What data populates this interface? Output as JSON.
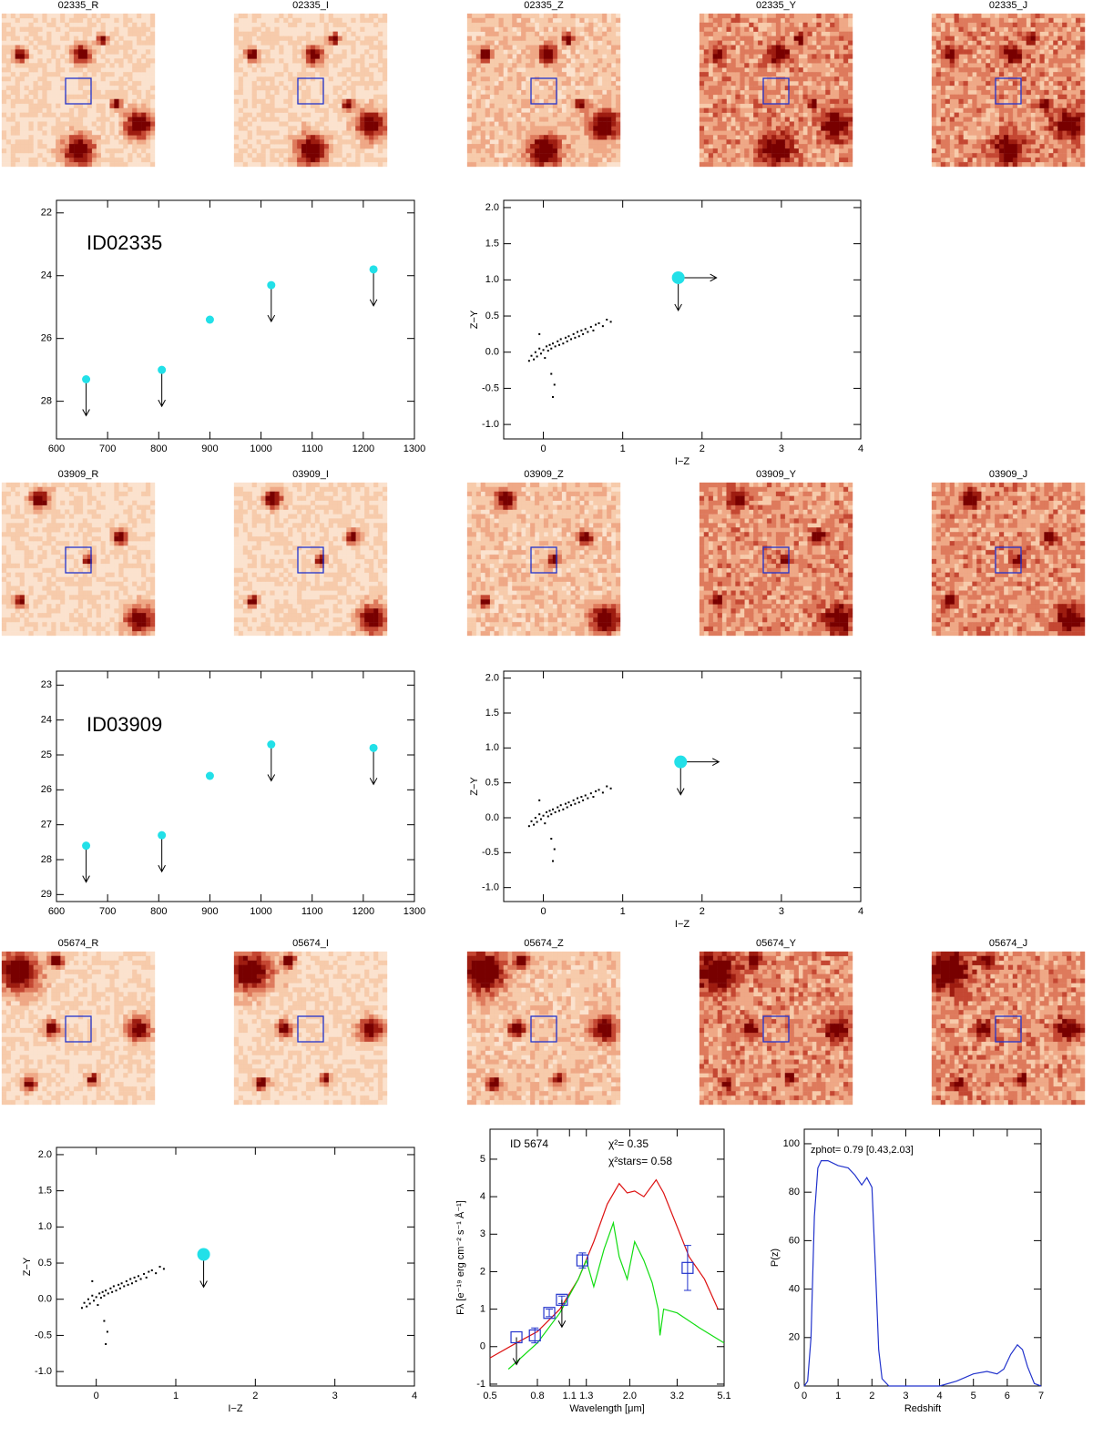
{
  "stamp_rows": [
    [
      "02335_R",
      "02335_I",
      "02335_Z",
      "02335_Y",
      "02335_J"
    ],
    [
      "03909_R",
      "03909_I",
      "03909_Z",
      "03909_Y",
      "03909_J"
    ],
    [
      "05674_R",
      "05674_I",
      "05674_Z",
      "05674_Y",
      "05674_J"
    ]
  ],
  "chart_data": [
    {
      "type": "scatter",
      "annotations": [
        "ID02335"
      ],
      "x": [
        658,
        806,
        900,
        1020,
        1220
      ],
      "values": [
        27.3,
        27.0,
        25.4,
        24.3,
        23.8
      ],
      "upper_limit": [
        true,
        true,
        false,
        true,
        true
      ],
      "color": "#22e0e8",
      "xlim": [
        600,
        1300
      ],
      "xticks": [
        600,
        700,
        800,
        900,
        1000,
        1100,
        1200,
        1300
      ],
      "ylim": [
        29.2,
        21.6
      ],
      "yticks": [
        22,
        24,
        26,
        28
      ]
    },
    {
      "type": "scatter",
      "xlabel": "I−Z",
      "ylabel": "Z−Y",
      "color": "#22e0e8",
      "stars": [
        [
          -0.18,
          -0.12
        ],
        [
          -0.15,
          -0.05
        ],
        [
          -0.12,
          -0.1
        ],
        [
          -0.1,
          0.0
        ],
        [
          -0.08,
          -0.06
        ],
        [
          -0.05,
          0.05
        ],
        [
          -0.03,
          -0.02
        ],
        [
          0.0,
          0.03
        ],
        [
          0.02,
          -0.08
        ],
        [
          0.04,
          0.08
        ],
        [
          0.06,
          0.02
        ],
        [
          0.08,
          0.1
        ],
        [
          0.1,
          -0.3
        ],
        [
          0.1,
          0.05
        ],
        [
          0.12,
          0.12
        ],
        [
          0.14,
          -0.45
        ],
        [
          0.15,
          0.08
        ],
        [
          0.18,
          0.15
        ],
        [
          0.2,
          0.1
        ],
        [
          0.22,
          0.18
        ],
        [
          0.25,
          0.12
        ],
        [
          0.28,
          0.2
        ],
        [
          0.3,
          0.15
        ],
        [
          0.32,
          0.22
        ],
        [
          0.35,
          0.18
        ],
        [
          0.38,
          0.25
        ],
        [
          0.4,
          0.2
        ],
        [
          0.43,
          0.28
        ],
        [
          0.45,
          0.22
        ],
        [
          0.48,
          0.3
        ],
        [
          0.5,
          0.25
        ],
        [
          0.53,
          0.32
        ],
        [
          0.56,
          0.28
        ],
        [
          0.6,
          0.35
        ],
        [
          0.63,
          0.3
        ],
        [
          0.66,
          0.38
        ],
        [
          0.7,
          0.4
        ],
        [
          0.75,
          0.36
        ],
        [
          0.8,
          0.45
        ],
        [
          0.85,
          0.42
        ],
        [
          -0.05,
          0.25
        ],
        [
          0.12,
          -0.62
        ]
      ],
      "x": [
        1.7
      ],
      "values": [
        1.03
      ],
      "arrows": [
        "right",
        "down"
      ],
      "xlim": [
        -0.5,
        4
      ],
      "xticks": [
        0,
        1,
        2,
        3,
        4
      ],
      "ylim": [
        -1.2,
        2.1
      ],
      "yticks": [
        {
          "value": -1,
          "label": "-1.0"
        },
        -0.5,
        {
          "value": 0,
          "label": "0.0"
        },
        0.5,
        {
          "value": 1,
          "label": "1.0"
        },
        1.5,
        {
          "value": 2,
          "label": "2.0"
        }
      ]
    },
    {
      "type": "scatter",
      "annotations": [
        "ID03909"
      ],
      "x": [
        658,
        806,
        900,
        1020,
        1220
      ],
      "values": [
        27.6,
        27.3,
        25.6,
        24.7,
        24.8
      ],
      "upper_limit": [
        true,
        true,
        false,
        true,
        true
      ],
      "color": "#22e0e8",
      "xlim": [
        600,
        1300
      ],
      "xticks": [
        600,
        700,
        800,
        900,
        1000,
        1100,
        1200,
        1300
      ],
      "ylim": [
        29.2,
        22.6
      ],
      "yticks": [
        23,
        24,
        25,
        26,
        27,
        28,
        29
      ]
    },
    {
      "type": "scatter",
      "xlabel": "I−Z",
      "ylabel": "Z−Y",
      "color": "#22e0e8",
      "stars": [
        [
          -0.18,
          -0.12
        ],
        [
          -0.15,
          -0.05
        ],
        [
          -0.12,
          -0.1
        ],
        [
          -0.1,
          0.0
        ],
        [
          -0.08,
          -0.06
        ],
        [
          -0.05,
          0.05
        ],
        [
          -0.03,
          -0.02
        ],
        [
          0.0,
          0.03
        ],
        [
          0.02,
          -0.08
        ],
        [
          0.04,
          0.08
        ],
        [
          0.06,
          0.02
        ],
        [
          0.08,
          0.1
        ],
        [
          0.1,
          -0.3
        ],
        [
          0.1,
          0.05
        ],
        [
          0.12,
          0.12
        ],
        [
          0.14,
          -0.45
        ],
        [
          0.15,
          0.08
        ],
        [
          0.18,
          0.15
        ],
        [
          0.2,
          0.1
        ],
        [
          0.22,
          0.18
        ],
        [
          0.25,
          0.12
        ],
        [
          0.28,
          0.2
        ],
        [
          0.3,
          0.15
        ],
        [
          0.32,
          0.22
        ],
        [
          0.35,
          0.18
        ],
        [
          0.38,
          0.25
        ],
        [
          0.4,
          0.2
        ],
        [
          0.43,
          0.28
        ],
        [
          0.45,
          0.22
        ],
        [
          0.48,
          0.3
        ],
        [
          0.5,
          0.25
        ],
        [
          0.53,
          0.32
        ],
        [
          0.56,
          0.28
        ],
        [
          0.6,
          0.35
        ],
        [
          0.63,
          0.3
        ],
        [
          0.66,
          0.38
        ],
        [
          0.7,
          0.4
        ],
        [
          0.75,
          0.36
        ],
        [
          0.8,
          0.45
        ],
        [
          0.85,
          0.42
        ],
        [
          -0.05,
          0.25
        ],
        [
          0.12,
          -0.62
        ]
      ],
      "x": [
        1.73
      ],
      "values": [
        0.8
      ],
      "arrows": [
        "right",
        "down"
      ],
      "xlim": [
        -0.5,
        4
      ],
      "xticks": [
        0,
        1,
        2,
        3,
        4
      ],
      "ylim": [
        -1.2,
        2.1
      ],
      "yticks": [
        {
          "value": -1,
          "label": "-1.0"
        },
        -0.5,
        {
          "value": 0,
          "label": "0.0"
        },
        0.5,
        {
          "value": 1,
          "label": "1.0"
        },
        1.5,
        {
          "value": 2,
          "label": "2.0"
        }
      ]
    },
    {
      "type": "scatter",
      "xlabel": "I−Z",
      "ylabel": "Z−Y",
      "color": "#22e0e8",
      "stars": [
        [
          -0.18,
          -0.12
        ],
        [
          -0.15,
          -0.05
        ],
        [
          -0.12,
          -0.1
        ],
        [
          -0.1,
          0.0
        ],
        [
          -0.08,
          -0.06
        ],
        [
          -0.05,
          0.05
        ],
        [
          -0.03,
          -0.02
        ],
        [
          0.0,
          0.03
        ],
        [
          0.02,
          -0.08
        ],
        [
          0.04,
          0.08
        ],
        [
          0.06,
          0.02
        ],
        [
          0.08,
          0.1
        ],
        [
          0.1,
          -0.3
        ],
        [
          0.1,
          0.05
        ],
        [
          0.12,
          0.12
        ],
        [
          0.14,
          -0.45
        ],
        [
          0.15,
          0.08
        ],
        [
          0.18,
          0.15
        ],
        [
          0.2,
          0.1
        ],
        [
          0.22,
          0.18
        ],
        [
          0.25,
          0.12
        ],
        [
          0.28,
          0.2
        ],
        [
          0.3,
          0.15
        ],
        [
          0.32,
          0.22
        ],
        [
          0.35,
          0.18
        ],
        [
          0.38,
          0.25
        ],
        [
          0.4,
          0.2
        ],
        [
          0.43,
          0.28
        ],
        [
          0.45,
          0.22
        ],
        [
          0.48,
          0.3
        ],
        [
          0.5,
          0.25
        ],
        [
          0.53,
          0.32
        ],
        [
          0.56,
          0.28
        ],
        [
          0.6,
          0.35
        ],
        [
          0.63,
          0.3
        ],
        [
          0.66,
          0.38
        ],
        [
          0.7,
          0.4
        ],
        [
          0.75,
          0.36
        ],
        [
          0.8,
          0.45
        ],
        [
          0.85,
          0.42
        ],
        [
          -0.05,
          0.25
        ],
        [
          0.12,
          -0.62
        ]
      ],
      "x": [
        1.35
      ],
      "values": [
        0.62
      ],
      "arrows": [
        "down"
      ],
      "xlim": [
        -0.5,
        4
      ],
      "xticks": [
        0,
        1,
        2,
        3,
        4
      ],
      "ylim": [
        -1.2,
        2.1
      ],
      "yticks": [
        {
          "value": -1,
          "label": "-1.0"
        },
        -0.5,
        {
          "value": 0,
          "label": "0.0"
        },
        0.5,
        {
          "value": 1,
          "label": "1.0"
        },
        1.5,
        {
          "value": 2,
          "label": "2.0"
        }
      ]
    },
    {
      "type": "line",
      "annotations": [
        "ID 5674",
        "χ²= 0.35",
        "χ²stars= 0.58"
      ],
      "xlabel": "Wavelength [μm]",
      "ylabel": "Fλ [e⁻¹⁹ erg cm⁻² s⁻¹ Å⁻¹]",
      "xscale": "log",
      "lines": [
        {
          "color": "#dd1111",
          "x": [
            0.5,
            0.65,
            0.8,
            1.0,
            1.2,
            1.4,
            1.6,
            1.8,
            1.95,
            2.1,
            2.3,
            2.6,
            2.8,
            3.2,
            3.6,
            4.2,
            4.8
          ],
          "values": [
            -0.3,
            0.1,
            0.4,
            1.0,
            1.8,
            2.8,
            3.8,
            4.35,
            4.1,
            4.15,
            4.0,
            4.45,
            4.1,
            3.2,
            2.4,
            1.8,
            1.0
          ]
        },
        {
          "color": "#11dd11",
          "x": [
            0.6,
            0.8,
            1.0,
            1.2,
            1.3,
            1.4,
            1.55,
            1.7,
            1.8,
            1.95,
            2.1,
            2.3,
            2.5,
            2.65,
            2.7,
            2.8,
            3.2,
            4.0,
            5.1
          ],
          "values": [
            -0.6,
            0.1,
            0.9,
            1.8,
            2.3,
            1.6,
            2.6,
            3.3,
            2.4,
            1.8,
            2.8,
            2.3,
            1.7,
            1.0,
            0.3,
            1.0,
            0.9,
            0.5,
            0.1
          ]
        }
      ],
      "obs": {
        "color": "#2233cc",
        "x": [
          0.65,
          0.78,
          0.9,
          1.02,
          1.25,
          3.55
        ],
        "values": [
          0.25,
          0.3,
          0.9,
          1.25,
          2.3,
          2.1
        ],
        "errors": [
          null,
          0.2,
          0.1,
          0.1,
          0.2,
          0.6
        ],
        "upper_limit": [
          true,
          false,
          false,
          true,
          false,
          false
        ]
      },
      "xlim": [
        0.5,
        5.1
      ],
      "xticks": [
        0.5,
        0.8,
        1.1,
        1.3,
        {
          "value": 2,
          "label": "2.0"
        },
        3.2,
        5.1
      ],
      "ylim": [
        -1.05,
        5.8
      ],
      "yticks": [
        -1,
        0,
        1,
        2,
        3,
        4,
        5
      ]
    },
    {
      "type": "line",
      "annotations": [
        "zphot= 0.79 [0.43,2.03]"
      ],
      "xlabel": "Redshift",
      "ylabel": "P(z)",
      "lines": [
        {
          "color": "#2233cc",
          "x": [
            0,
            0.1,
            0.2,
            0.3,
            0.4,
            0.5,
            0.7,
            1.0,
            1.3,
            1.5,
            1.7,
            1.85,
            2.0,
            2.1,
            2.2,
            2.3,
            2.5,
            4.0,
            4.5,
            5.0,
            5.4,
            5.7,
            5.9,
            6.1,
            6.3,
            6.45,
            6.6,
            6.8,
            7.0
          ],
          "values": [
            0,
            2,
            20,
            70,
            90,
            93,
            93,
            91,
            90,
            87,
            83,
            86,
            82,
            50,
            15,
            3,
            0,
            0,
            2,
            5,
            6,
            5,
            7,
            13,
            17,
            15,
            8,
            1,
            0
          ]
        }
      ],
      "xlim": [
        0,
        7
      ],
      "xticks": [
        0,
        1,
        2,
        3,
        4,
        5,
        6,
        7
      ],
      "ylim": [
        0,
        106
      ],
      "yticks": [
        0,
        20,
        40,
        60,
        80,
        100
      ]
    }
  ]
}
